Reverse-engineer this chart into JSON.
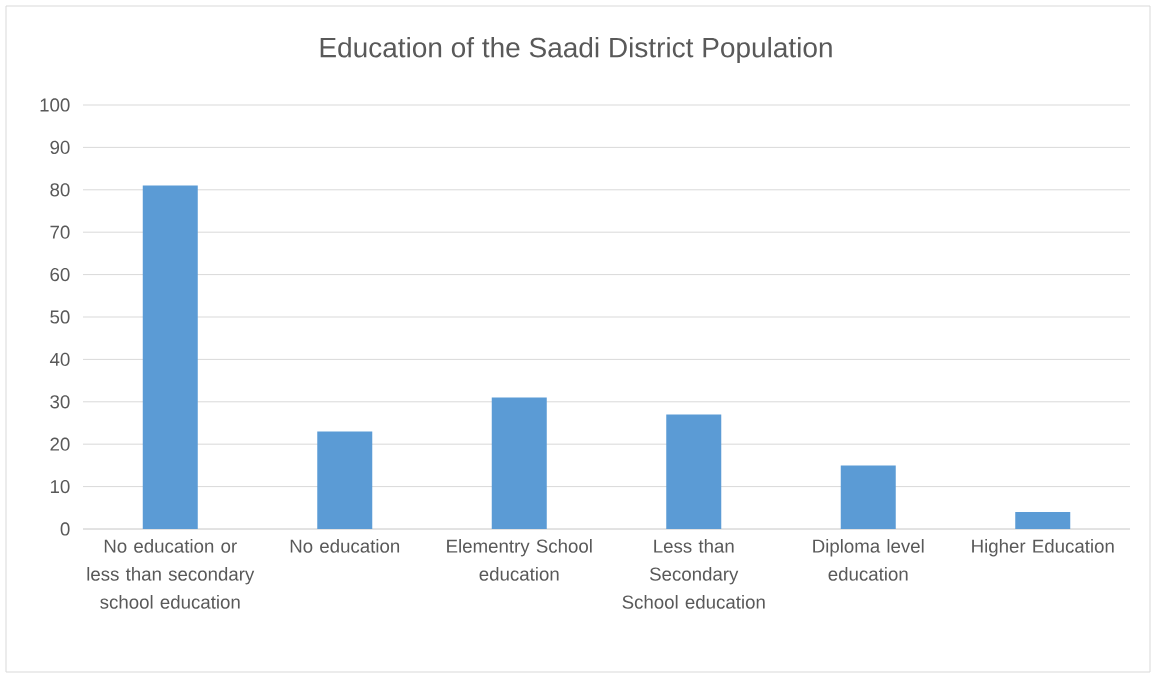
{
  "chart_data": {
    "type": "bar",
    "title": "Education of the Saadi District Population",
    "categories": [
      "No education or less than secondary school education",
      "No education",
      "Elementry School education",
      "Less than Secondary School education",
      "Diploma level education",
      "Higher Education"
    ],
    "values": [
      81,
      23,
      31,
      27,
      15,
      4
    ],
    "color": "#5b9bd5",
    "ylim": [
      0,
      100
    ],
    "yticks": [
      0,
      10,
      20,
      30,
      40,
      50,
      60,
      70,
      80,
      90,
      100
    ],
    "grid": "y"
  }
}
